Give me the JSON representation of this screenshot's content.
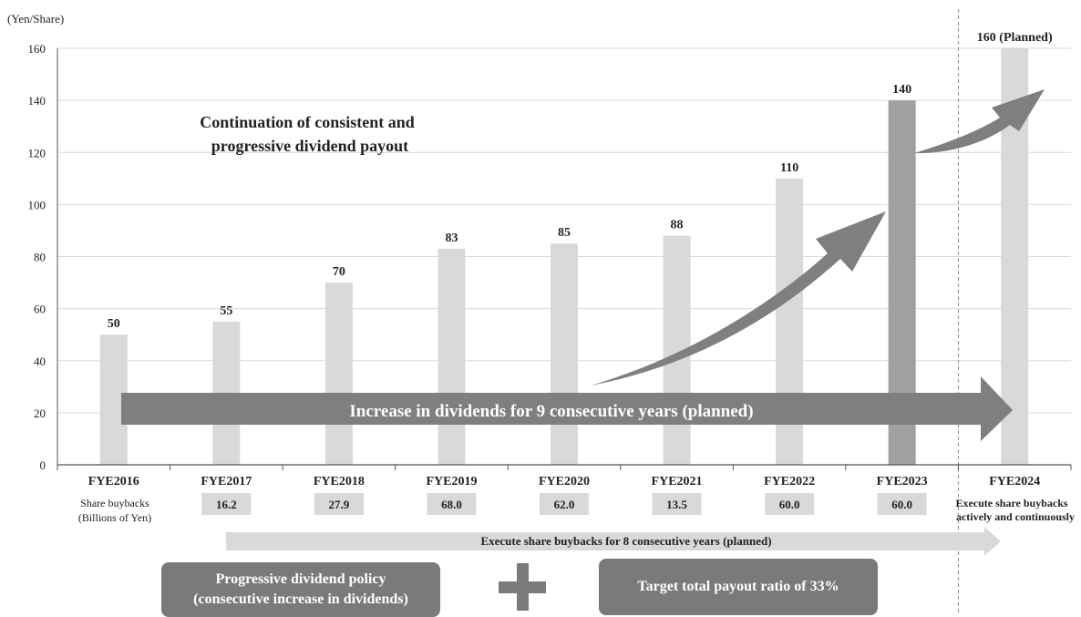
{
  "chart_data": {
    "type": "bar",
    "yunit_label": "(Yen/Share)",
    "ylim": [
      0,
      160
    ],
    "yticks": [
      0,
      20,
      40,
      60,
      80,
      100,
      120,
      140,
      160
    ],
    "categories": [
      "FYE2016",
      "FYE2017",
      "FYE2018",
      "FYE2019",
      "FYE2020",
      "FYE2021",
      "FYE2022",
      "FYE2023",
      "FYE2024"
    ],
    "values": [
      50,
      55,
      70,
      83,
      85,
      88,
      110,
      140,
      160
    ],
    "value_labels": [
      "50",
      "55",
      "70",
      "83",
      "85",
      "88",
      "110",
      "140",
      "160 (Planned)"
    ],
    "highlight_index": 7,
    "colors": {
      "bar": "#d9d9d9",
      "bar_highlight": "#a0a0a0",
      "arrow": "#7f7f7f",
      "arrow_light": "#d9d9d9",
      "box": "#7a7a7a"
    },
    "grid": true,
    "annotation": [
      "Continuation of consistent and",
      "progressive dividend payout"
    ],
    "big_arrow_text": "Increase in dividends for 9 consecutive years (planned)"
  },
  "buybacks": {
    "label_line1": "Share buybacks",
    "label_line2": "(Billions of Yen)",
    "values": [
      "",
      "16.2",
      "27.9",
      "68.0",
      "62.0",
      "13.5",
      "60.0",
      "60.0"
    ],
    "fye2024_line1": "Execute share buybacks",
    "fye2024_line2": "actively and continuously",
    "arrow_text": "Execute share buybacks for 8 consecutive years (planned)"
  },
  "policy": {
    "box1_line1": "Progressive dividend policy",
    "box1_line2": "(consecutive increase in dividends)",
    "box2": "Target total payout ratio of 33%"
  }
}
